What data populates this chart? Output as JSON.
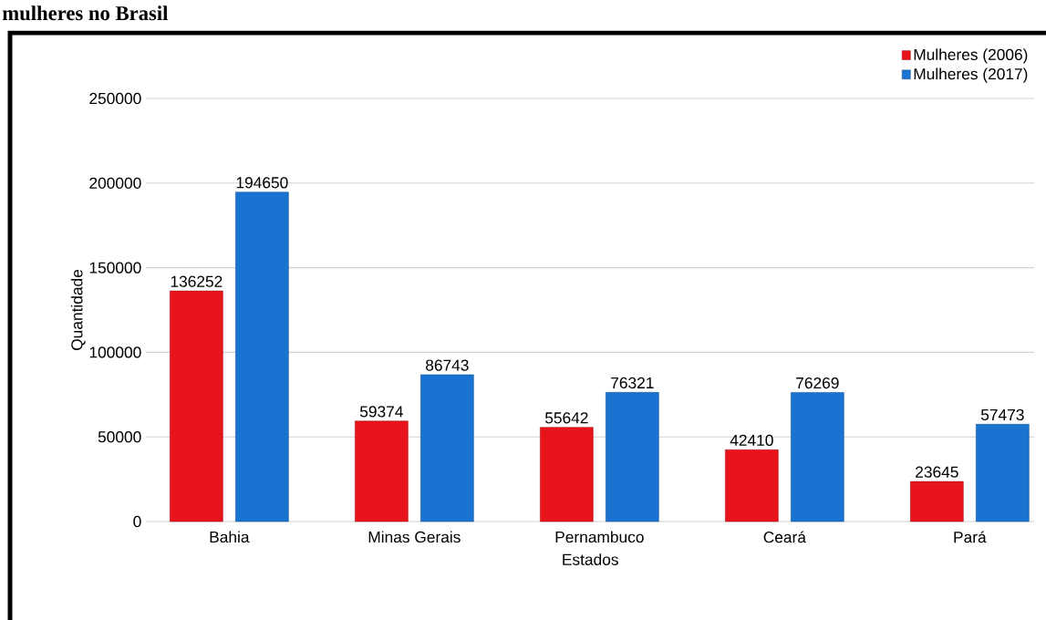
{
  "chart_data": {
    "type": "bar",
    "title": "mulheres no Brasil",
    "xlabel": "Estados",
    "ylabel": "Quantidade",
    "categories": [
      "Bahia",
      "Minas Gerais",
      "Pernambuco",
      "Ceará",
      "Pará"
    ],
    "series": [
      {
        "name": "Mulheres (2006)",
        "color": "#e8141b",
        "values": [
          136252,
          59374,
          55642,
          42410,
          23645
        ]
      },
      {
        "name": "Mulheres (2017)",
        "color": "#1a73d0",
        "values": [
          194650,
          86743,
          76321,
          76269,
          57473
        ]
      }
    ],
    "ylim": [
      0,
      250000
    ],
    "yticks": [
      0,
      50000,
      100000,
      150000,
      200000,
      250000
    ],
    "grid": "y",
    "legend": "top right",
    "data_labels": true
  }
}
